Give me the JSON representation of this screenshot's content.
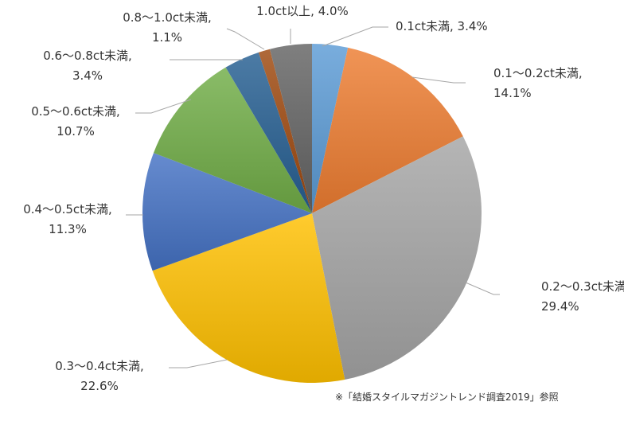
{
  "chart_data": {
    "type": "pie",
    "title": "",
    "start": "12 o'clock",
    "direction": "clockwise",
    "slices": [
      {
        "label": "0.1ct未満",
        "value": 3.4,
        "value_label": "3.4%",
        "color": "#5B9BD5"
      },
      {
        "label": "0.1〜0.2ct未満",
        "value": 14.1,
        "value_label": "14.1%",
        "color": "#ED7D31"
      },
      {
        "label": "0.2〜0.3ct未満",
        "value": 29.4,
        "value_label": "29.4%",
        "color": "#A5A5A5"
      },
      {
        "label": "0.3〜0.4ct未満",
        "value": 22.6,
        "value_label": "22.6%",
        "color": "#FFC000"
      },
      {
        "label": "0.4〜0.5ct未満",
        "value": 11.3,
        "value_label": "11.3%",
        "color": "#4472C4"
      },
      {
        "label": "0.5〜0.6ct未満",
        "value": 10.7,
        "value_label": "10.7%",
        "color": "#70AD47"
      },
      {
        "label": "0.6〜0.8ct未満",
        "value": 3.4,
        "value_label": "3.4%",
        "color": "#255E91"
      },
      {
        "label": "0.8〜1.0ct未満",
        "value": 1.1,
        "value_label": "1.1%",
        "color": "#9E480E"
      },
      {
        "label": "1.0ct以上",
        "value": 4.0,
        "value_label": "4.0%",
        "color": "#636363"
      }
    ]
  },
  "source_note": "※「結婚スタイルマガジントレンド調査2019」参照"
}
